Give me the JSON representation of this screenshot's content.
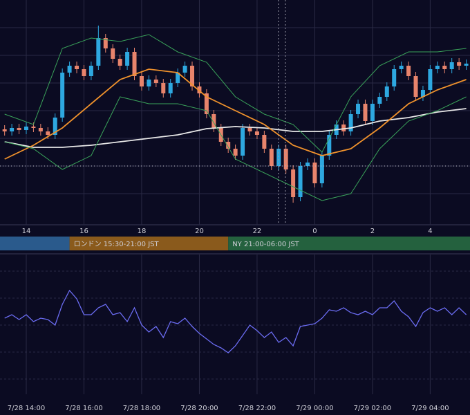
{
  "chart_data": [
    {
      "type": "candlestick",
      "x": [
        13.25,
        13.5,
        13.75,
        14,
        14.25,
        14.5,
        14.75,
        15,
        15.25,
        15.5,
        15.75,
        16,
        16.25,
        16.5,
        16.75,
        17,
        17.25,
        17.5,
        17.75,
        18,
        18.25,
        18.5,
        18.75,
        19,
        19.25,
        19.5,
        19.75,
        20,
        20.25,
        20.5,
        20.75,
        21,
        21.25,
        21.5,
        21.75,
        22,
        22.25,
        22.5,
        22.75,
        23,
        23.25,
        23.5,
        23.75,
        24,
        24.25,
        24.5,
        24.75,
        25,
        25.25,
        25.5,
        25.75,
        26,
        26.25,
        26.5,
        26.75,
        27,
        27.25,
        27.5,
        27.75,
        28,
        28.25,
        28.5,
        28.75,
        29,
        29.25
      ],
      "open": [
        138,
        135,
        140,
        137,
        142,
        140,
        135,
        130,
        155,
        220,
        230,
        225,
        215,
        230,
        270,
        255,
        240,
        230,
        250,
        215,
        200,
        210,
        205,
        190,
        205,
        220,
        230,
        200,
        190,
        160,
        140,
        120,
        110,
        100,
        140,
        135,
        130,
        110,
        85,
        110,
        80,
        40,
        85,
        90,
        60,
        100,
        130,
        145,
        135,
        160,
        175,
        150,
        175,
        185,
        200,
        225,
        230,
        215,
        185,
        195,
        225,
        230,
        225,
        235,
        230
      ],
      "high": [
        144,
        146,
        146,
        148,
        148,
        146,
        141,
        161,
        226,
        236,
        236,
        231,
        236,
        288,
        276,
        261,
        246,
        256,
        256,
        221,
        216,
        216,
        211,
        211,
        226,
        236,
        236,
        206,
        196,
        166,
        146,
        126,
        116,
        146,
        146,
        141,
        136,
        116,
        116,
        116,
        86,
        91,
        96,
        96,
        106,
        136,
        151,
        151,
        166,
        181,
        181,
        181,
        191,
        206,
        231,
        236,
        236,
        221,
        201,
        231,
        236,
        236,
        241,
        241,
        239
      ],
      "low": [
        129,
        129,
        131,
        131,
        134,
        129,
        124,
        124,
        149,
        214,
        219,
        209,
        209,
        224,
        249,
        234,
        224,
        224,
        209,
        194,
        194,
        199,
        184,
        184,
        199,
        214,
        194,
        184,
        154,
        134,
        114,
        104,
        94,
        94,
        129,
        124,
        104,
        79,
        79,
        74,
        32,
        34,
        79,
        54,
        54,
        94,
        124,
        129,
        129,
        154,
        144,
        144,
        169,
        179,
        194,
        219,
        209,
        179,
        179,
        189,
        219,
        219,
        219,
        224,
        224
      ],
      "close": [
        135,
        140,
        137,
        142,
        140,
        135,
        130,
        155,
        220,
        230,
        225,
        215,
        230,
        270,
        255,
        240,
        230,
        250,
        215,
        200,
        210,
        205,
        190,
        205,
        220,
        230,
        200,
        190,
        160,
        140,
        120,
        110,
        100,
        140,
        135,
        130,
        110,
        85,
        110,
        80,
        40,
        85,
        90,
        60,
        100,
        130,
        145,
        135,
        160,
        175,
        150,
        175,
        185,
        200,
        225,
        230,
        215,
        185,
        195,
        225,
        230,
        225,
        235,
        230,
        233
      ],
      "up_color": "#2ea8e0",
      "down_color": "#e8846c",
      "xlim": [
        13.09,
        29.38
      ],
      "ylim": [
        0,
        325
      ],
      "xticks": [
        14,
        16,
        18,
        20,
        22,
        {
          "value": 24,
          "label": "0"
        },
        {
          "value": 26,
          "label": "2"
        },
        {
          "value": 28,
          "label": "4"
        }
      ],
      "ygrid": [
        45,
        85,
        125,
        165,
        205,
        245,
        285
      ],
      "hline": 85,
      "vlines": [
        22.74,
        22.98
      ],
      "lines": [
        {
          "color": "#e8e8e8",
          "x": [
            13.25,
            14.25,
            15.25,
            16.25,
            17.25,
            18.25,
            19.25,
            20.25,
            21.25,
            22.25,
            23.25,
            24.25,
            25.25,
            26.25,
            27.25,
            28.25,
            29.25
          ],
          "values": [
            120,
            112,
            112,
            115,
            120,
            125,
            130,
            139,
            142,
            140,
            135,
            135,
            140,
            150,
            155,
            163,
            168
          ]
        },
        {
          "color": "#f0922c",
          "x": [
            13.25,
            14.25,
            15.25,
            16.25,
            17.25,
            18.25,
            19.25,
            20.25,
            21.25,
            22.25,
            23.25,
            24.25,
            25.25,
            26.25,
            27.25,
            28.25,
            29.25
          ],
          "values": [
            95,
            115,
            140,
            175,
            210,
            225,
            220,
            185,
            165,
            145,
            115,
            100,
            110,
            140,
            175,
            195,
            210
          ]
        },
        {
          "color": "#3aa35a",
          "x": [
            13.25,
            14.25,
            15.25,
            16.25,
            17.25,
            18.25,
            19.25,
            20.25,
            21.25,
            22.25,
            23.25,
            24.25,
            25.25,
            26.25,
            27.25,
            28.25,
            29.25
          ],
          "values": [
            160,
            145,
            255,
            270,
            265,
            275,
            250,
            235,
            185,
            160,
            145,
            105,
            185,
            230,
            250,
            250,
            255
          ]
        },
        {
          "color": "#3aa35a",
          "x": [
            13.25,
            14.25,
            15.25,
            16.25,
            17.25,
            18.25,
            19.25,
            20.25,
            21.25,
            22.25,
            23.25,
            24.25,
            25.25,
            26.25,
            27.25,
            28.25,
            29.25
          ],
          "values": [
            120,
            110,
            80,
            100,
            185,
            175,
            175,
            165,
            95,
            75,
            55,
            35,
            45,
            110,
            150,
            165,
            185
          ]
        }
      ],
      "sessions": [
        {
          "start": 13,
          "end": 15.5,
          "color": "#2a5a8c"
        },
        {
          "label": "ロンドン 15:30-21:00 JST",
          "start": 15.5,
          "end": 21,
          "color": "#8a5a1c"
        },
        {
          "label": "NY 21:00-06:00 JST",
          "start": 21,
          "end": 30,
          "color": "#24613e"
        }
      ]
    },
    {
      "type": "line",
      "x": [
        13.25,
        13.5,
        13.75,
        14,
        14.25,
        14.5,
        14.75,
        15,
        15.25,
        15.5,
        15.75,
        16,
        16.25,
        16.5,
        16.75,
        17,
        17.25,
        17.5,
        17.75,
        18,
        18.25,
        18.5,
        18.75,
        19,
        19.25,
        19.5,
        19.75,
        20,
        20.25,
        20.5,
        20.75,
        21,
        21.25,
        21.5,
        21.75,
        22,
        22.25,
        22.5,
        22.75,
        23,
        23.25,
        23.5,
        23.75,
        24,
        24.25,
        24.5,
        24.75,
        25,
        25.25,
        25.5,
        25.75,
        26,
        26.25,
        26.5,
        26.75,
        27,
        27.25,
        27.5,
        27.75,
        28,
        28.25,
        28.5,
        28.75,
        29,
        29.25
      ],
      "values": [
        110,
        115,
        108,
        115,
        105,
        110,
        108,
        100,
        130,
        150,
        138,
        115,
        115,
        125,
        130,
        115,
        118,
        105,
        125,
        100,
        90,
        98,
        82,
        105,
        102,
        110,
        98,
        88,
        80,
        72,
        67,
        60,
        70,
        85,
        100,
        92,
        82,
        90,
        75,
        82,
        70,
        98,
        100,
        102,
        110,
        122,
        120,
        125,
        118,
        115,
        120,
        115,
        125,
        125,
        135,
        120,
        112,
        98,
        118,
        125,
        120,
        125,
        115,
        125,
        115
      ],
      "color": "#6b6cf2",
      "xlim": [
        13.09,
        29.38
      ],
      "ylim": [
        0,
        202
      ],
      "xticks": [
        {
          "value": 14,
          "label": "7/28 14:00"
        },
        {
          "value": 16,
          "label": "7/28 16:00"
        },
        {
          "value": 18,
          "label": "7/28 18:00"
        },
        {
          "value": 20,
          "label": "7/28 20:00"
        },
        {
          "value": 22,
          "label": "7/28 22:00"
        },
        {
          "value": 24,
          "label": "7/29 00:00"
        },
        {
          "value": 26,
          "label": "7/29 02:00"
        },
        {
          "value": 28,
          "label": "7/29 04:00"
        }
      ],
      "ygrid": [
        22,
        61,
        100,
        139,
        178
      ]
    }
  ]
}
